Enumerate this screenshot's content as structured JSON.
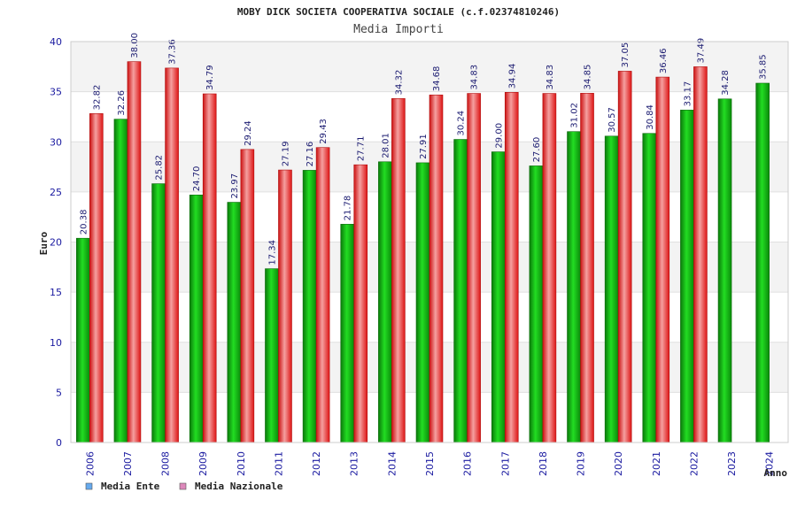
{
  "chart_data": {
    "type": "bar",
    "title": "MOBY DICK SOCIETA COOPERATIVA SOCIALE (c.f.02374810246)",
    "subtitle": "Media Importi",
    "xlabel": "Anno",
    "ylabel": "Euro",
    "ylim": [
      0,
      40
    ],
    "yticks": [
      "0",
      "5",
      "10",
      "15",
      "20",
      "25",
      "30",
      "35",
      "40"
    ],
    "categories": [
      "2006",
      "2007",
      "2008",
      "2009",
      "2010",
      "2011",
      "2012",
      "2013",
      "2014",
      "2015",
      "2016",
      "2017",
      "2018",
      "2019",
      "2020",
      "2021",
      "2022",
      "2023",
      "2024"
    ],
    "series": [
      {
        "name": "Media Ente",
        "color": "#11aa11",
        "legend_color": "#66aaee",
        "values": [
          20.38,
          32.26,
          25.82,
          24.7,
          23.97,
          17.34,
          27.16,
          21.78,
          28.01,
          27.91,
          30.24,
          29.0,
          27.6,
          31.02,
          30.57,
          30.84,
          33.17,
          34.28,
          35.85
        ],
        "labels": [
          "20.38",
          "32.26",
          "25.82",
          "24.70",
          "23.97",
          "17.34",
          "27.16",
          "21.78",
          "28.01",
          "27.91",
          "30.24",
          "29.00",
          "27.60",
          "31.02",
          "30.57",
          "30.84",
          "33.17",
          "34.28",
          "35.85"
        ]
      },
      {
        "name": "Media Nazionale",
        "color": "#ee2222",
        "legend_color": "#dd88bb",
        "values": [
          32.82,
          38.0,
          37.36,
          34.79,
          29.24,
          27.19,
          29.43,
          27.71,
          34.32,
          34.68,
          34.83,
          34.94,
          34.83,
          34.85,
          37.05,
          36.46,
          37.49,
          null,
          null
        ],
        "labels": [
          "32.82",
          "38.00",
          "37.36",
          "34.79",
          "29.24",
          "27.19",
          "29.43",
          "27.71",
          "34.32",
          "34.68",
          "34.83",
          "34.94",
          "34.83",
          "34.85",
          "37.05",
          "36.46",
          "37.49",
          null,
          null
        ]
      }
    ],
    "legend_position": "bottom-left",
    "grid": true
  }
}
